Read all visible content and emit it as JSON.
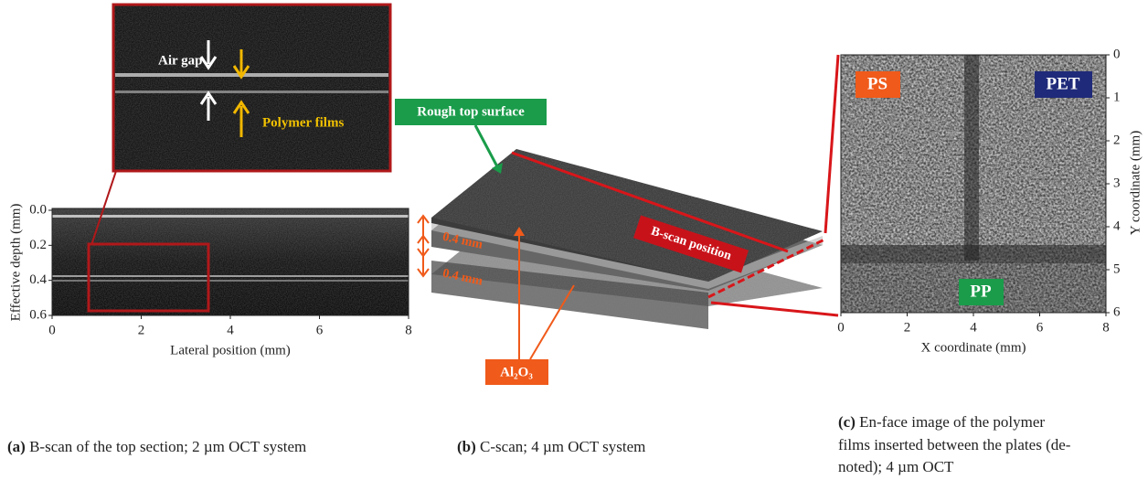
{
  "panels": [
    {
      "label": "(a)",
      "caption": "B-scan of the top section; 2 µm OCT system",
      "xlabel": "Lateral position (mm)",
      "ylabel": "Effective depth (mm)",
      "xticks": [
        "0",
        "2",
        "4",
        "6",
        "8"
      ],
      "yticks": [
        "0.0",
        "0.2",
        "0.4",
        "0.6"
      ],
      "annotations": [
        "Air gap",
        "Polymer films"
      ]
    },
    {
      "label": "(b)",
      "caption": "C-scan; 4 µm OCT system",
      "annotations": [
        "Rough top surface",
        "B-scan position",
        "0.4 mm",
        "0.4 mm",
        "Al₂O₃"
      ]
    },
    {
      "label": "(c)",
      "caption_lines": [
        "En-face image of the polymer",
        "films inserted between the plates (de-",
        "noted); 4 µm OCT"
      ],
      "xlabel": "X coordinate (mm)",
      "ylabel": "Y coordinate (mm)",
      "xticks": [
        "0",
        "2",
        "4",
        "6",
        "8"
      ],
      "yticks": [
        "0",
        "1",
        "2",
        "3",
        "4",
        "5",
        "6"
      ],
      "annotations": [
        "PS",
        "PET",
        "PP"
      ]
    }
  ]
}
